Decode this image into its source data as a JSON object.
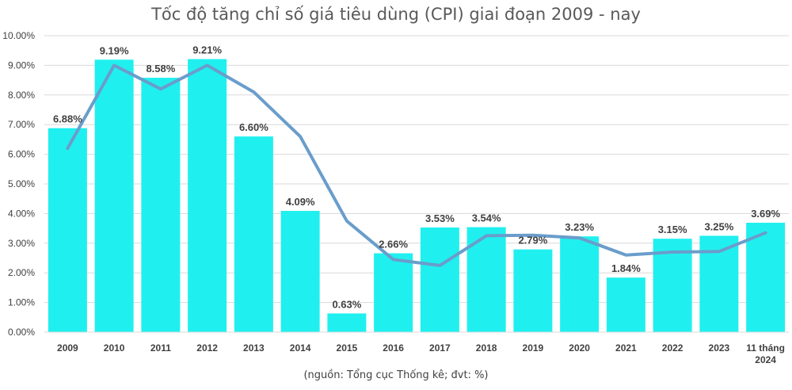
{
  "chart_data": {
    "type": "bar",
    "title": "Tốc độ tăng chỉ số giá tiêu dùng (CPI) giai đoạn 2009 - nay",
    "source": "(nguồn: Tổng cục Thống kê; đvt: %)",
    "categories": [
      "2009",
      "2010",
      "2011",
      "2012",
      "2013",
      "2014",
      "2015",
      "2016",
      "2017",
      "2018",
      "2019",
      "2020",
      "2021",
      "2022",
      "2023",
      "11 tháng 2024"
    ],
    "category_lines": [
      [
        "2009"
      ],
      [
        "2010"
      ],
      [
        "2011"
      ],
      [
        "2012"
      ],
      [
        "2013"
      ],
      [
        "2014"
      ],
      [
        "2015"
      ],
      [
        "2016"
      ],
      [
        "2017"
      ],
      [
        "2018"
      ],
      [
        "2019"
      ],
      [
        "2020"
      ],
      [
        "2021"
      ],
      [
        "2022"
      ],
      [
        "2023"
      ],
      [
        "11 tháng",
        "2024"
      ]
    ],
    "values": [
      6.88,
      9.19,
      8.58,
      9.21,
      6.6,
      4.09,
      0.63,
      2.66,
      3.53,
      3.54,
      2.79,
      3.23,
      1.84,
      3.15,
      3.25,
      3.69
    ],
    "data_labels": [
      "6.88%",
      "9.19%",
      "8.58%",
      "9.21%",
      "6.60%",
      "4.09%",
      "0.63%",
      "2.66%",
      "3.53%",
      "3.54%",
      "2.79%",
      "3.23%",
      "1.84%",
      "3.15%",
      "3.25%",
      "3.69%"
    ],
    "line_values": [
      6.2,
      9.0,
      8.2,
      9.0,
      8.1,
      6.6,
      3.75,
      2.45,
      2.25,
      3.25,
      3.27,
      3.18,
      2.6,
      2.7,
      2.72,
      3.35
    ],
    "ylim": [
      0,
      10
    ],
    "yticks": [
      0,
      1,
      2,
      3,
      4,
      5,
      6,
      7,
      8,
      9,
      10
    ],
    "ytick_labels": [
      "0.00%",
      "1.00%",
      "2.00%",
      "3.00%",
      "4.00%",
      "5.00%",
      "6.00%",
      "7.00%",
      "8.00%",
      "9.00%",
      "10.00%"
    ],
    "grid": true,
    "legend": "none",
    "colors": {
      "bar": "#1FF0EF",
      "line": "#6A9DCB",
      "grid": "#D9D9D9",
      "text": "#404040",
      "axis": "#404040"
    }
  }
}
